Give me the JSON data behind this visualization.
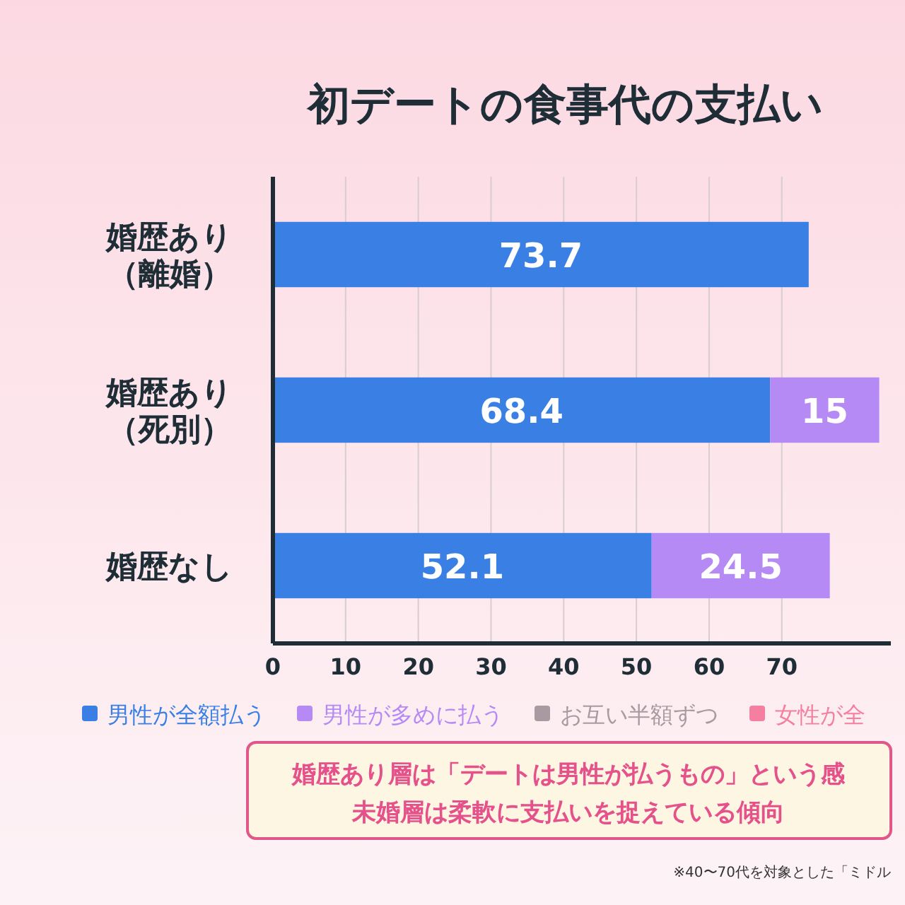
{
  "chart_data": {
    "type": "bar",
    "orientation": "horizontal",
    "stacked": true,
    "title": "初デートの食事代の支払い",
    "categories": [
      "婚歴あり（離婚）",
      "婚歴あり（死別）",
      "婚歴なし"
    ],
    "series": [
      {
        "name": "男性が全額払う",
        "color": "#3a80e4",
        "values": [
          73.7,
          68.4,
          52.1
        ]
      },
      {
        "name": "男性が多めに払う",
        "color": "#b58af5",
        "values": [
          null,
          15,
          24.5
        ]
      },
      {
        "name": "お互い半額ずつ",
        "color": "#a89aa0",
        "values": [
          null,
          null,
          null
        ]
      },
      {
        "name": "女性が全",
        "color": "#f47fa0",
        "values": [
          null,
          null,
          null
        ]
      }
    ],
    "xlim": [
      0,
      85
    ],
    "xticks": [
      0,
      10,
      20,
      30,
      40,
      50,
      60,
      70
    ],
    "grid": "x",
    "legend": "bottom",
    "data_labels": true,
    "annotations": [
      "婚歴あり層は「デートは男性が払うもの」という感",
      "未婚層は柔軟に支払いを捉えている傾向",
      "※40〜70代を対象とした「ミドル"
    ]
  }
}
